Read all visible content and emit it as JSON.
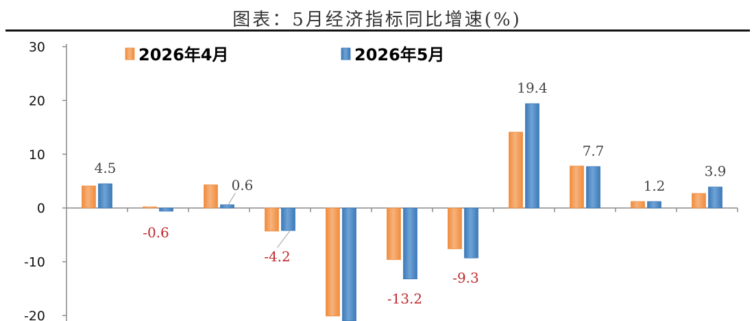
{
  "title": "图表：5月经济指标同比增速(%)",
  "colors": {
    "series_april": "#f08c3c",
    "series_may": "#3d7ab8",
    "label_positive": "#444444",
    "label_negative": "#c0282d",
    "axis": "#8a8a8a"
  },
  "chart_data": {
    "type": "bar",
    "title": "图表：5月经济指标同比增速(%)",
    "categories": [
      "",
      "",
      "",
      "",
      "",
      "",
      "",
      "",
      "",
      "",
      ""
    ],
    "series": [
      {
        "name": "2026年4月",
        "values": [
          4.1,
          0.2,
          4.3,
          -4.3,
          -20.1,
          -9.6,
          -7.6,
          14.1,
          7.8,
          1.2,
          2.7
        ]
      },
      {
        "name": "2026年5月",
        "values": [
          4.5,
          -0.6,
          0.6,
          -4.2,
          -21.0,
          -13.2,
          -9.3,
          19.4,
          7.7,
          1.2,
          3.9
        ]
      }
    ],
    "data_labels": [
      "4.5",
      "-0.6",
      "0.6",
      "-4.2",
      "",
      "-13.2",
      "-9.3",
      "19.4",
      "7.7",
      "1.2",
      "3.9"
    ],
    "ylim": [
      -20,
      30
    ],
    "y_ticks": [
      "30",
      "20",
      "10",
      "0",
      "-10",
      "-20"
    ],
    "xlabel": "",
    "ylabel": "",
    "grid": false,
    "legend_position": "top-left"
  }
}
